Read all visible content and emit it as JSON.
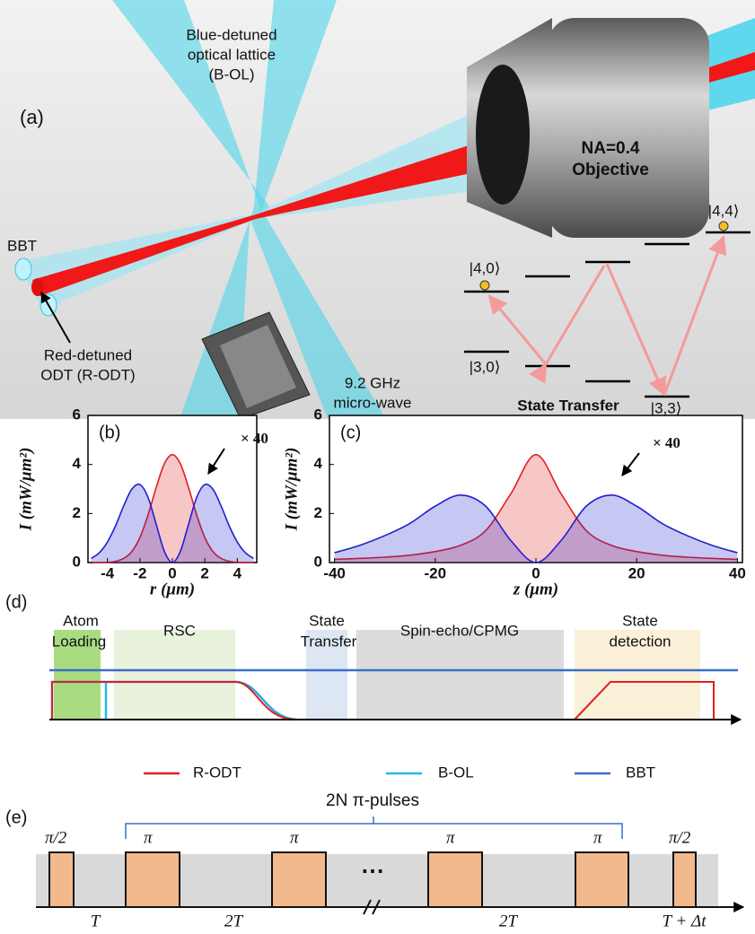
{
  "panel_a": {
    "label": "(a)",
    "lattice": [
      "Blue-detuned",
      "optical lattice",
      "(B-OL)"
    ],
    "objective": [
      "NA=0.4",
      "Objective"
    ],
    "bbt": "BBT",
    "rodt": [
      "Red-detuned",
      "ODT (R-ODT)"
    ],
    "microwave": [
      "9.2 GHz",
      "micro-wave"
    ],
    "levels": {
      "s40": "|4,0⟩",
      "s30": "|3,0⟩",
      "s33": "|3,3⟩",
      "s44": "|4,4⟩"
    },
    "state_transfer": "State Transfer"
  },
  "chart_data": [
    {
      "type": "area",
      "label": "(b)",
      "x_label": "r (μm)",
      "y_label": "I (mW/μm²)",
      "annotation": "× 40",
      "x": [
        -5,
        -4.5,
        -4,
        -3.5,
        -3,
        -2.5,
        -2,
        -1.5,
        -1,
        -0.5,
        0,
        0.5,
        1,
        1.5,
        2,
        2.5,
        3,
        3.5,
        4,
        4.5,
        5
      ],
      "series": [
        {
          "color": "#e02020",
          "values": [
            0,
            0,
            0.01,
            0.05,
            0.17,
            0.45,
            1.02,
            1.94,
            3.05,
            4.02,
            4.4,
            4.02,
            3.05,
            1.94,
            1.02,
            0.45,
            0.17,
            0.05,
            0.01,
            0,
            0
          ]
        },
        {
          "color": "#2020d0",
          "values": [
            0.17,
            0.4,
            0.84,
            1.5,
            2.31,
            2.99,
            3.18,
            2.66,
            1.57,
            0.47,
            0,
            0.47,
            1.57,
            2.66,
            3.18,
            2.99,
            2.31,
            1.5,
            0.84,
            0.4,
            0.17
          ]
        }
      ],
      "xlim": [
        -5.2,
        5.2
      ],
      "xticks": [
        -4,
        -2,
        0,
        2,
        4
      ],
      "ylim": [
        0,
        6
      ],
      "yticks": [
        0,
        2,
        4,
        6
      ]
    },
    {
      "type": "area",
      "label": "(c)",
      "x_label": "z (μm)",
      "y_label": "I (mW/μm²)",
      "annotation": "× 40",
      "x": [
        -40,
        -35,
        -30,
        -25,
        -20,
        -15,
        -10,
        -5,
        0,
        5,
        10,
        15,
        20,
        25,
        30,
        35,
        40
      ],
      "series": [
        {
          "color": "#e02020",
          "values": [
            0.13,
            0.17,
            0.22,
            0.3,
            0.45,
            0.7,
            1.3,
            2.8,
            4.4,
            2.8,
            1.3,
            0.7,
            0.45,
            0.3,
            0.22,
            0.17,
            0.13
          ]
        },
        {
          "color": "#2020d0",
          "values": [
            0.4,
            0.7,
            1.1,
            1.6,
            2.3,
            2.75,
            2.3,
            0.9,
            0,
            0.9,
            2.3,
            2.75,
            2.3,
            1.6,
            1.1,
            0.7,
            0.4
          ]
        }
      ],
      "xlim": [
        -41,
        41
      ],
      "xticks": [
        -40,
        -20,
        0,
        20,
        40
      ],
      "ylim": [
        0,
        6
      ],
      "yticks": [
        0,
        2,
        4,
        6
      ]
    }
  ],
  "panel_d": {
    "label": "(d)",
    "stages": {
      "loading": [
        "Atom",
        "Loading"
      ],
      "rsc": "RSC",
      "transfer": [
        "State",
        "Transfer"
      ],
      "spin": "Spin-echo/CPMG",
      "detection": [
        "State",
        "detection"
      ]
    },
    "legend": [
      "R-ODT",
      "B-OL",
      "BBT"
    ]
  },
  "panel_e": {
    "label": "(e)",
    "bracket": "2N π-pulses",
    "pulses": [
      "π/2",
      "π",
      "π",
      "π",
      "π",
      "π/2"
    ],
    "dots": "⋯",
    "intervals": [
      "T",
      "2T",
      "2T",
      "T + Δt"
    ]
  }
}
